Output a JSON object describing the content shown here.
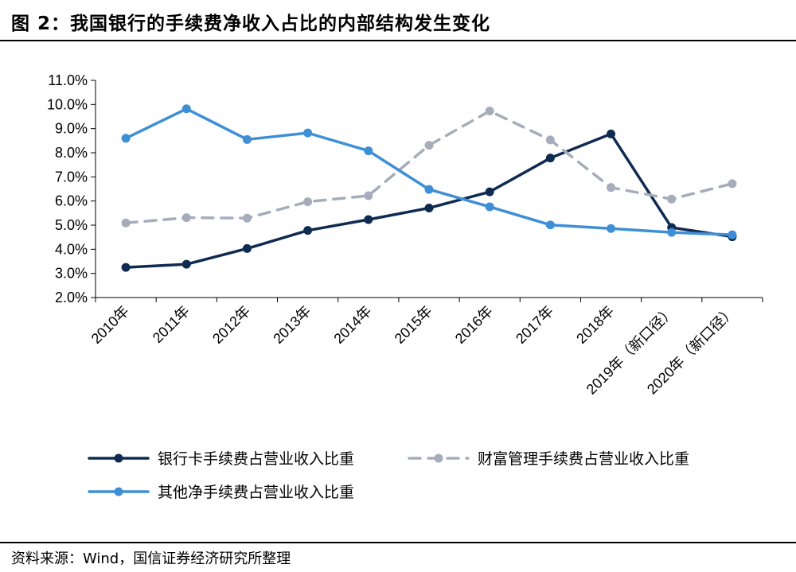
{
  "title": "图 2：我国银行的手续费净收入占比的内部结构发生变化",
  "source": "资料来源：Wind，国信证券经济研究所整理",
  "chart_data": {
    "type": "line",
    "categories": [
      "2010年",
      "2011年",
      "2012年",
      "2013年",
      "2014年",
      "2015年",
      "2016年",
      "2017年",
      "2018年",
      "2019年（新口径）",
      "2020年（新口径）"
    ],
    "ylim": [
      2.0,
      11.0
    ],
    "yticks": [
      "2.0%",
      "3.0%",
      "4.0%",
      "5.0%",
      "6.0%",
      "7.0%",
      "8.0%",
      "9.0%",
      "10.0%",
      "11.0%"
    ],
    "legend_position": "bottom",
    "series": [
      {
        "name": "银行卡手续费占营业收入比重",
        "color": "#0f2b52",
        "dash": false,
        "values": [
          3.25,
          3.38,
          4.03,
          4.78,
          5.23,
          5.71,
          6.38,
          7.78,
          8.78,
          4.9,
          4.52
        ]
      },
      {
        "name": "财富管理手续费占营业收入比重",
        "color": "#a5adbb",
        "dash": true,
        "values": [
          5.09,
          5.31,
          5.29,
          5.97,
          6.22,
          8.31,
          9.73,
          8.53,
          6.56,
          6.08,
          6.72
        ]
      },
      {
        "name": "其他净手续费占营业收入比重",
        "color": "#3e8fd6",
        "dash": false,
        "values": [
          8.6,
          9.82,
          8.55,
          8.82,
          8.08,
          6.48,
          5.76,
          5.01,
          4.86,
          4.7,
          4.6
        ]
      }
    ]
  }
}
